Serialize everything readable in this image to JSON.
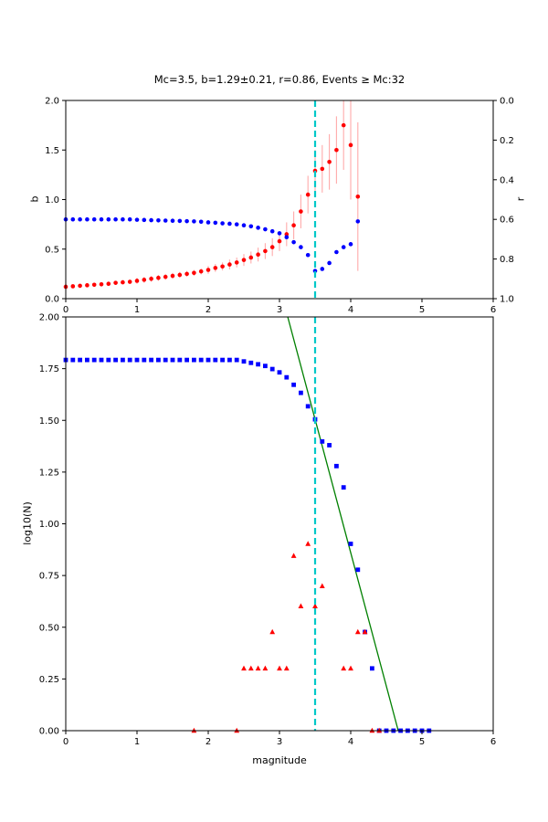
{
  "figure": {
    "title": "Mc=3.5, b=1.29±0.21, r=0.86, Events ≥ Mc:32",
    "background": "#ffffff"
  },
  "colors": {
    "b_marker": "#ff0000",
    "error_bar": "#ffaaaa",
    "r_marker": "#0000ff",
    "cumulative_marker": "#0000ff",
    "bin_marker": "#ff0000",
    "fit_line": "#008000",
    "mc_line": "#00c8c8",
    "axis": "#000000"
  },
  "chart_data": [
    {
      "id": "b-r-vs-cutoff-magnitude",
      "type": "scatter",
      "title": "Mc=3.5, b=1.29±0.21, r=0.86, Events ≥ Mc:32",
      "ylabel_left": "b",
      "ylabel_right": "r",
      "xlim": [
        0,
        6
      ],
      "ylim_left": [
        0,
        2
      ],
      "ylim_right": [
        1,
        0
      ],
      "grid": false,
      "xticks": [
        0,
        1,
        2,
        3,
        4,
        5,
        6
      ],
      "xtick_labels": [
        "0",
        "1",
        "2",
        "3",
        "4",
        "5",
        "6"
      ],
      "yticks_left": [
        0,
        0.5,
        1,
        1.5,
        2
      ],
      "ytick_left_labels": [
        "0.0",
        "0.5",
        "1.0",
        "1.5",
        "2.0"
      ],
      "yticks_right": [
        0,
        0.2,
        0.4,
        0.6,
        0.8,
        1
      ],
      "ytick_right_labels": [
        "0.0",
        "0.2",
        "0.4",
        "0.6",
        "0.8",
        "1.0"
      ],
      "mc_line_x": 3.5,
      "series": [
        {
          "name": "b-value",
          "axis": "left",
          "marker": "circle",
          "color": "#ff0000",
          "x": [
            0,
            0.1,
            0.2,
            0.3,
            0.4,
            0.5,
            0.6,
            0.7,
            0.8,
            0.9,
            1,
            1.1,
            1.2,
            1.3,
            1.4,
            1.5,
            1.6,
            1.7,
            1.8,
            1.9,
            2,
            2.1,
            2.2,
            2.3,
            2.4,
            2.5,
            2.6,
            2.7,
            2.8,
            2.9,
            3,
            3.1,
            3.2,
            3.3,
            3.4,
            3.5,
            3.6,
            3.7,
            3.8,
            3.9,
            4,
            4.1
          ],
          "y": [
            0.12,
            0.125,
            0.13,
            0.135,
            0.14,
            0.145,
            0.15,
            0.16,
            0.165,
            0.17,
            0.18,
            0.19,
            0.2,
            0.21,
            0.22,
            0.23,
            0.24,
            0.25,
            0.26,
            0.275,
            0.29,
            0.31,
            0.325,
            0.345,
            0.365,
            0.39,
            0.415,
            0.445,
            0.48,
            0.52,
            0.58,
            0.65,
            0.74,
            0.88,
            1.05,
            1.29,
            1.31,
            1.38,
            1.5,
            1.75,
            1.55,
            1.03
          ],
          "yerr": [
            0.02,
            0.02,
            0.02,
            0.02,
            0.02,
            0.02,
            0.02,
            0.02,
            0.02,
            0.02,
            0.03,
            0.03,
            0.03,
            0.03,
            0.03,
            0.03,
            0.03,
            0.03,
            0.03,
            0.03,
            0.04,
            0.04,
            0.04,
            0.05,
            0.05,
            0.06,
            0.06,
            0.07,
            0.08,
            0.09,
            0.1,
            0.12,
            0.14,
            0.17,
            0.19,
            0.21,
            0.24,
            0.28,
            0.34,
            0.45,
            0.55,
            0.75
          ]
        },
        {
          "name": "correlation-r",
          "axis": "right",
          "marker": "circle",
          "color": "#0000ff",
          "x": [
            0,
            0.1,
            0.2,
            0.3,
            0.4,
            0.5,
            0.6,
            0.7,
            0.8,
            0.9,
            1,
            1.1,
            1.2,
            1.3,
            1.4,
            1.5,
            1.6,
            1.7,
            1.8,
            1.9,
            2,
            2.1,
            2.2,
            2.3,
            2.4,
            2.5,
            2.6,
            2.7,
            2.8,
            2.9,
            3,
            3.1,
            3.2,
            3.3,
            3.4,
            3.5,
            3.6,
            3.7,
            3.8,
            3.9,
            4,
            4.1
          ],
          "y": [
            0.6,
            0.6,
            0.6,
            0.6,
            0.6,
            0.6,
            0.6,
            0.6,
            0.6,
            0.6,
            0.602,
            0.603,
            0.604,
            0.605,
            0.606,
            0.607,
            0.608,
            0.609,
            0.61,
            0.612,
            0.615,
            0.617,
            0.62,
            0.622,
            0.625,
            0.63,
            0.635,
            0.642,
            0.65,
            0.66,
            0.67,
            0.69,
            0.715,
            0.74,
            0.78,
            0.86,
            0.85,
            0.82,
            0.765,
            0.74,
            0.725,
            0.61
          ]
        }
      ]
    },
    {
      "id": "frequency-magnitude-distribution",
      "type": "scatter",
      "xlabel": "magnitude",
      "ylabel": "log10(N)",
      "xlim": [
        0,
        6
      ],
      "ylim": [
        0,
        2
      ],
      "grid": false,
      "xticks": [
        0,
        1,
        2,
        3,
        4,
        5,
        6
      ],
      "xtick_labels": [
        "0",
        "1",
        "2",
        "3",
        "4",
        "5",
        "6"
      ],
      "yticks": [
        0,
        0.25,
        0.5,
        0.75,
        1,
        1.25,
        1.5,
        1.75,
        2
      ],
      "ytick_labels": [
        "0.00",
        "0.25",
        "0.50",
        "0.75",
        "1.00",
        "1.25",
        "1.50",
        "1.75",
        "2.00"
      ],
      "mc_line_x": 3.5,
      "fit_line": {
        "x": [
          3.116,
          4.667
        ],
        "y": [
          2.0,
          0.0
        ],
        "b_value": 1.29,
        "a_value": 6.02
      },
      "series": [
        {
          "name": "cumulative-counts",
          "marker": "square",
          "color": "#0000ff",
          "x": [
            0,
            0.1,
            0.2,
            0.3,
            0.4,
            0.5,
            0.6,
            0.7,
            0.8,
            0.9,
            1,
            1.1,
            1.2,
            1.3,
            1.4,
            1.5,
            1.6,
            1.7,
            1.8,
            1.9,
            2,
            2.1,
            2.2,
            2.3,
            2.4,
            2.5,
            2.6,
            2.7,
            2.8,
            2.9,
            3,
            3.1,
            3.2,
            3.3,
            3.4,
            3.5,
            3.6,
            3.7,
            3.8,
            3.9,
            4,
            4.1,
            4.2,
            4.3,
            4.4,
            4.5,
            4.6,
            4.7,
            4.8,
            4.9,
            5,
            5.1
          ],
          "y": [
            1.792,
            1.792,
            1.792,
            1.792,
            1.792,
            1.792,
            1.792,
            1.792,
            1.792,
            1.792,
            1.792,
            1.792,
            1.792,
            1.792,
            1.792,
            1.792,
            1.792,
            1.792,
            1.792,
            1.792,
            1.792,
            1.792,
            1.792,
            1.792,
            1.792,
            1.785,
            1.778,
            1.771,
            1.763,
            1.748,
            1.732,
            1.708,
            1.672,
            1.633,
            1.568,
            1.505,
            1.398,
            1.38,
            1.279,
            1.176,
            0.903,
            0.778,
            0.477,
            0.301,
            0,
            0,
            0,
            0,
            0,
            0,
            0,
            0
          ]
        },
        {
          "name": "binned-counts",
          "marker": "triangle",
          "color": "#ff0000",
          "x": [
            1.8,
            2.4,
            2.5,
            2.6,
            2.7,
            2.8,
            2.9,
            3,
            3.1,
            3.2,
            3.3,
            3.4,
            3.5,
            3.6,
            3.9,
            4,
            4.1,
            4.2,
            4.3,
            4.4
          ],
          "y": [
            0,
            0,
            0.301,
            0.301,
            0.301,
            0.301,
            0.477,
            0.301,
            0.301,
            0.845,
            0.602,
            0.903,
            0.602,
            0.699,
            0.301,
            0.301,
            0.477,
            0.477,
            0,
            0
          ]
        }
      ]
    }
  ]
}
